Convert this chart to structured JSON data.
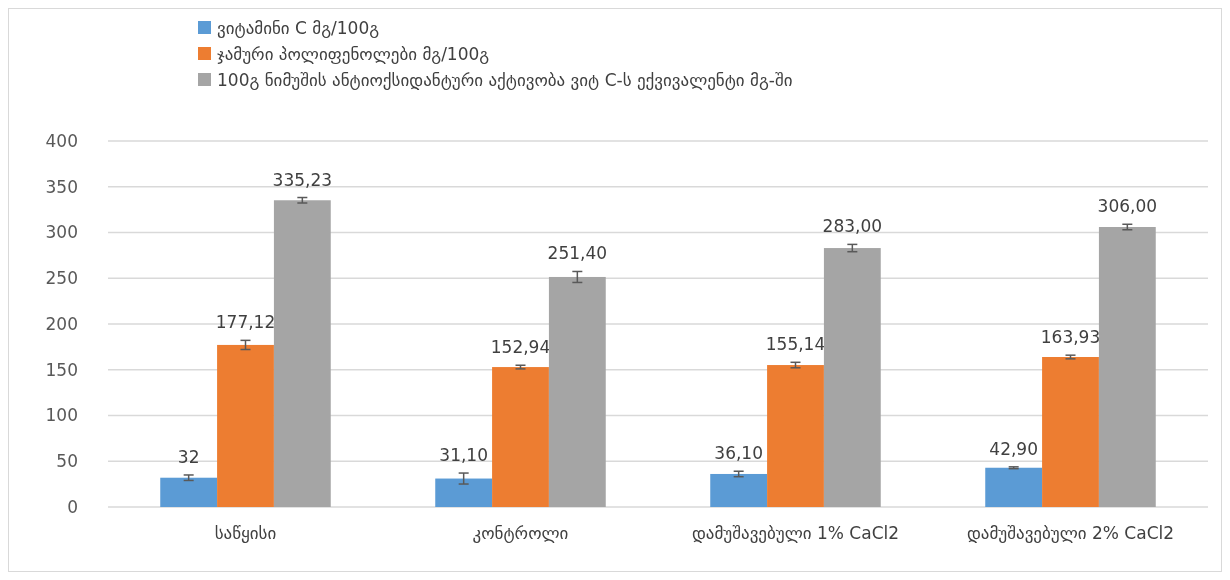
{
  "chart_data": {
    "type": "bar",
    "categories": [
      "საწყისი",
      "კონტროლი",
      "დამუშავებული 1% CaCl2",
      "დამუშავებული 2% CaCl2"
    ],
    "series": [
      {
        "name": "ვიტამინი C მგ/100გ",
        "color": "#5b9bd5",
        "values": [
          32,
          31.1,
          36.1,
          42.9
        ],
        "errors": [
          3,
          6,
          3,
          1
        ],
        "value_labels": [
          "32",
          "31,10",
          "36,10",
          "42,90"
        ]
      },
      {
        "name": "ჯამური პოლიფენოლები მგ/100გ",
        "color": "#ed7d31",
        "values": [
          177.12,
          152.94,
          155.14,
          163.93
        ],
        "errors": [
          5,
          2,
          3,
          2
        ],
        "value_labels": [
          "177,12",
          "152,94",
          "155,14",
          "163,93"
        ]
      },
      {
        "name": "100გ ნიმუშის ანტიოქსიდანტური აქტივობა ვიტ C-ს ექვივალენტი მგ-ში",
        "color": "#a5a5a5",
        "values": [
          335.23,
          251.4,
          283,
          306
        ],
        "errors": [
          3,
          6,
          4,
          3
        ],
        "value_labels": [
          "335,23",
          "251,40",
          "283,00",
          "306,00"
        ]
      }
    ],
    "ylim": [
      0,
      400
    ],
    "yticks": [
      0,
      50,
      100,
      150,
      200,
      250,
      300,
      350,
      400
    ],
    "grid": "y",
    "legend": "top left"
  }
}
